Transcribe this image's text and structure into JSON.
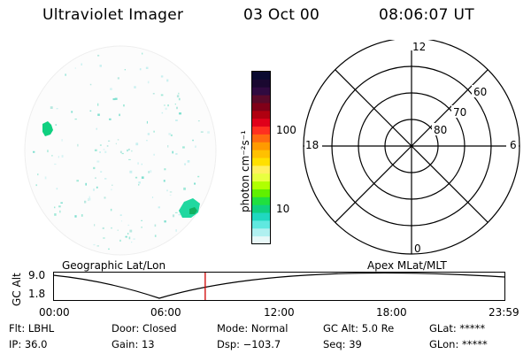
{
  "header": {
    "instrument": "Ultraviolet Imager",
    "date": "03 Oct 00",
    "time": "08:06:07 UT"
  },
  "colorbar": {
    "unit_label": "photon cm⁻²s⁻¹",
    "ticks": [
      "100",
      "10"
    ],
    "colors": [
      "#0a0a30",
      "#1a0830",
      "#300a40",
      "#5a0a2a",
      "#800018",
      "#b00010",
      "#e0001a",
      "#ff3020",
      "#ff6a10",
      "#ff9a00",
      "#ffc000",
      "#ffe000",
      "#fff060",
      "#e8ff40",
      "#b0ff00",
      "#60f000",
      "#20e040",
      "#10d080",
      "#20d8c0",
      "#60e8e0",
      "#b0f0f0",
      "#e8f8f8"
    ]
  },
  "polar": {
    "mlt_labels": {
      "top": "12",
      "left": "18",
      "right": "6",
      "bottom": "0"
    },
    "lat_labels": [
      "60",
      "70",
      "80"
    ]
  },
  "altitude_panel": {
    "ylabel": "GC Alt",
    "yticks": [
      "9.0",
      "1.8"
    ],
    "left_caption": "Geographic Lat/Lon",
    "right_caption": "Apex MLat/MLT",
    "time_ticks": [
      "00:00",
      "06:00",
      "12:00",
      "18:00",
      "23:59"
    ],
    "current_time_fraction": 0.337
  },
  "info": {
    "filter": "Flt: LBHL",
    "door": "Door: Closed",
    "mode": "Mode: Normal",
    "gc_alt": "GC Alt: 5.0 Re",
    "glat": "GLat: *****",
    "ip": "IP: 36.0",
    "gain": "Gain: 13",
    "dsp": "Dsp: −103.7",
    "seq": "Seq: 39",
    "glon": "GLon: *****"
  }
}
